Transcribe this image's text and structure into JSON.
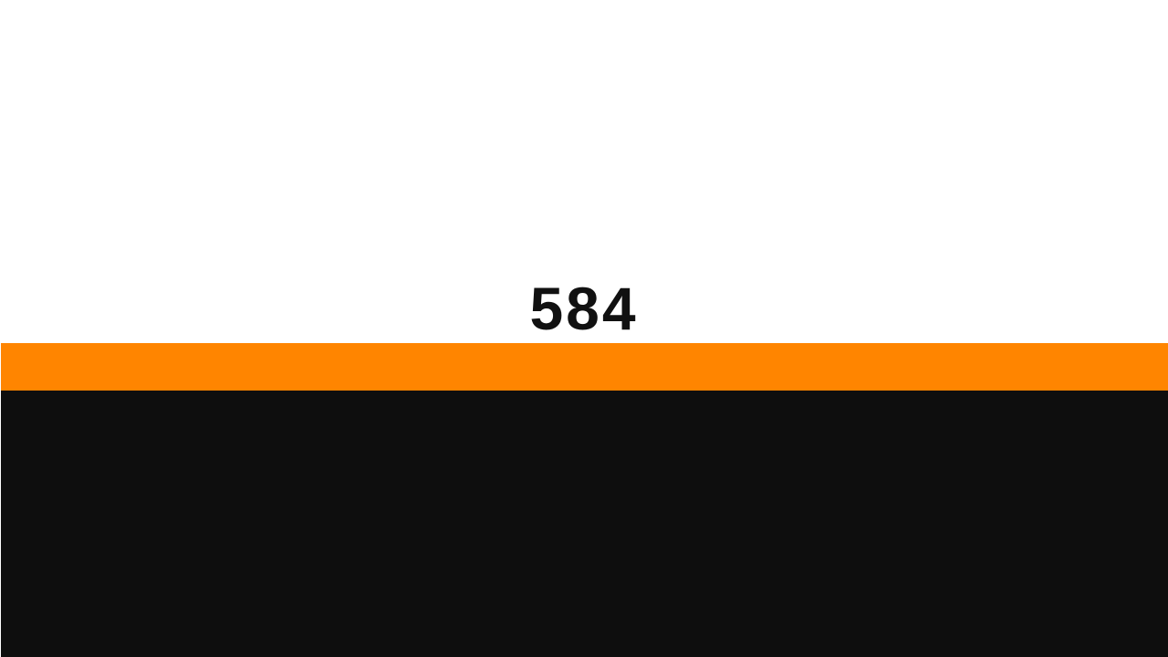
{
  "game": {
    "score": "584"
  },
  "colors": {
    "background": "#ffffff",
    "score_text": "#111111",
    "stripe": "#ff8500",
    "ground": "#0e0e0e"
  }
}
